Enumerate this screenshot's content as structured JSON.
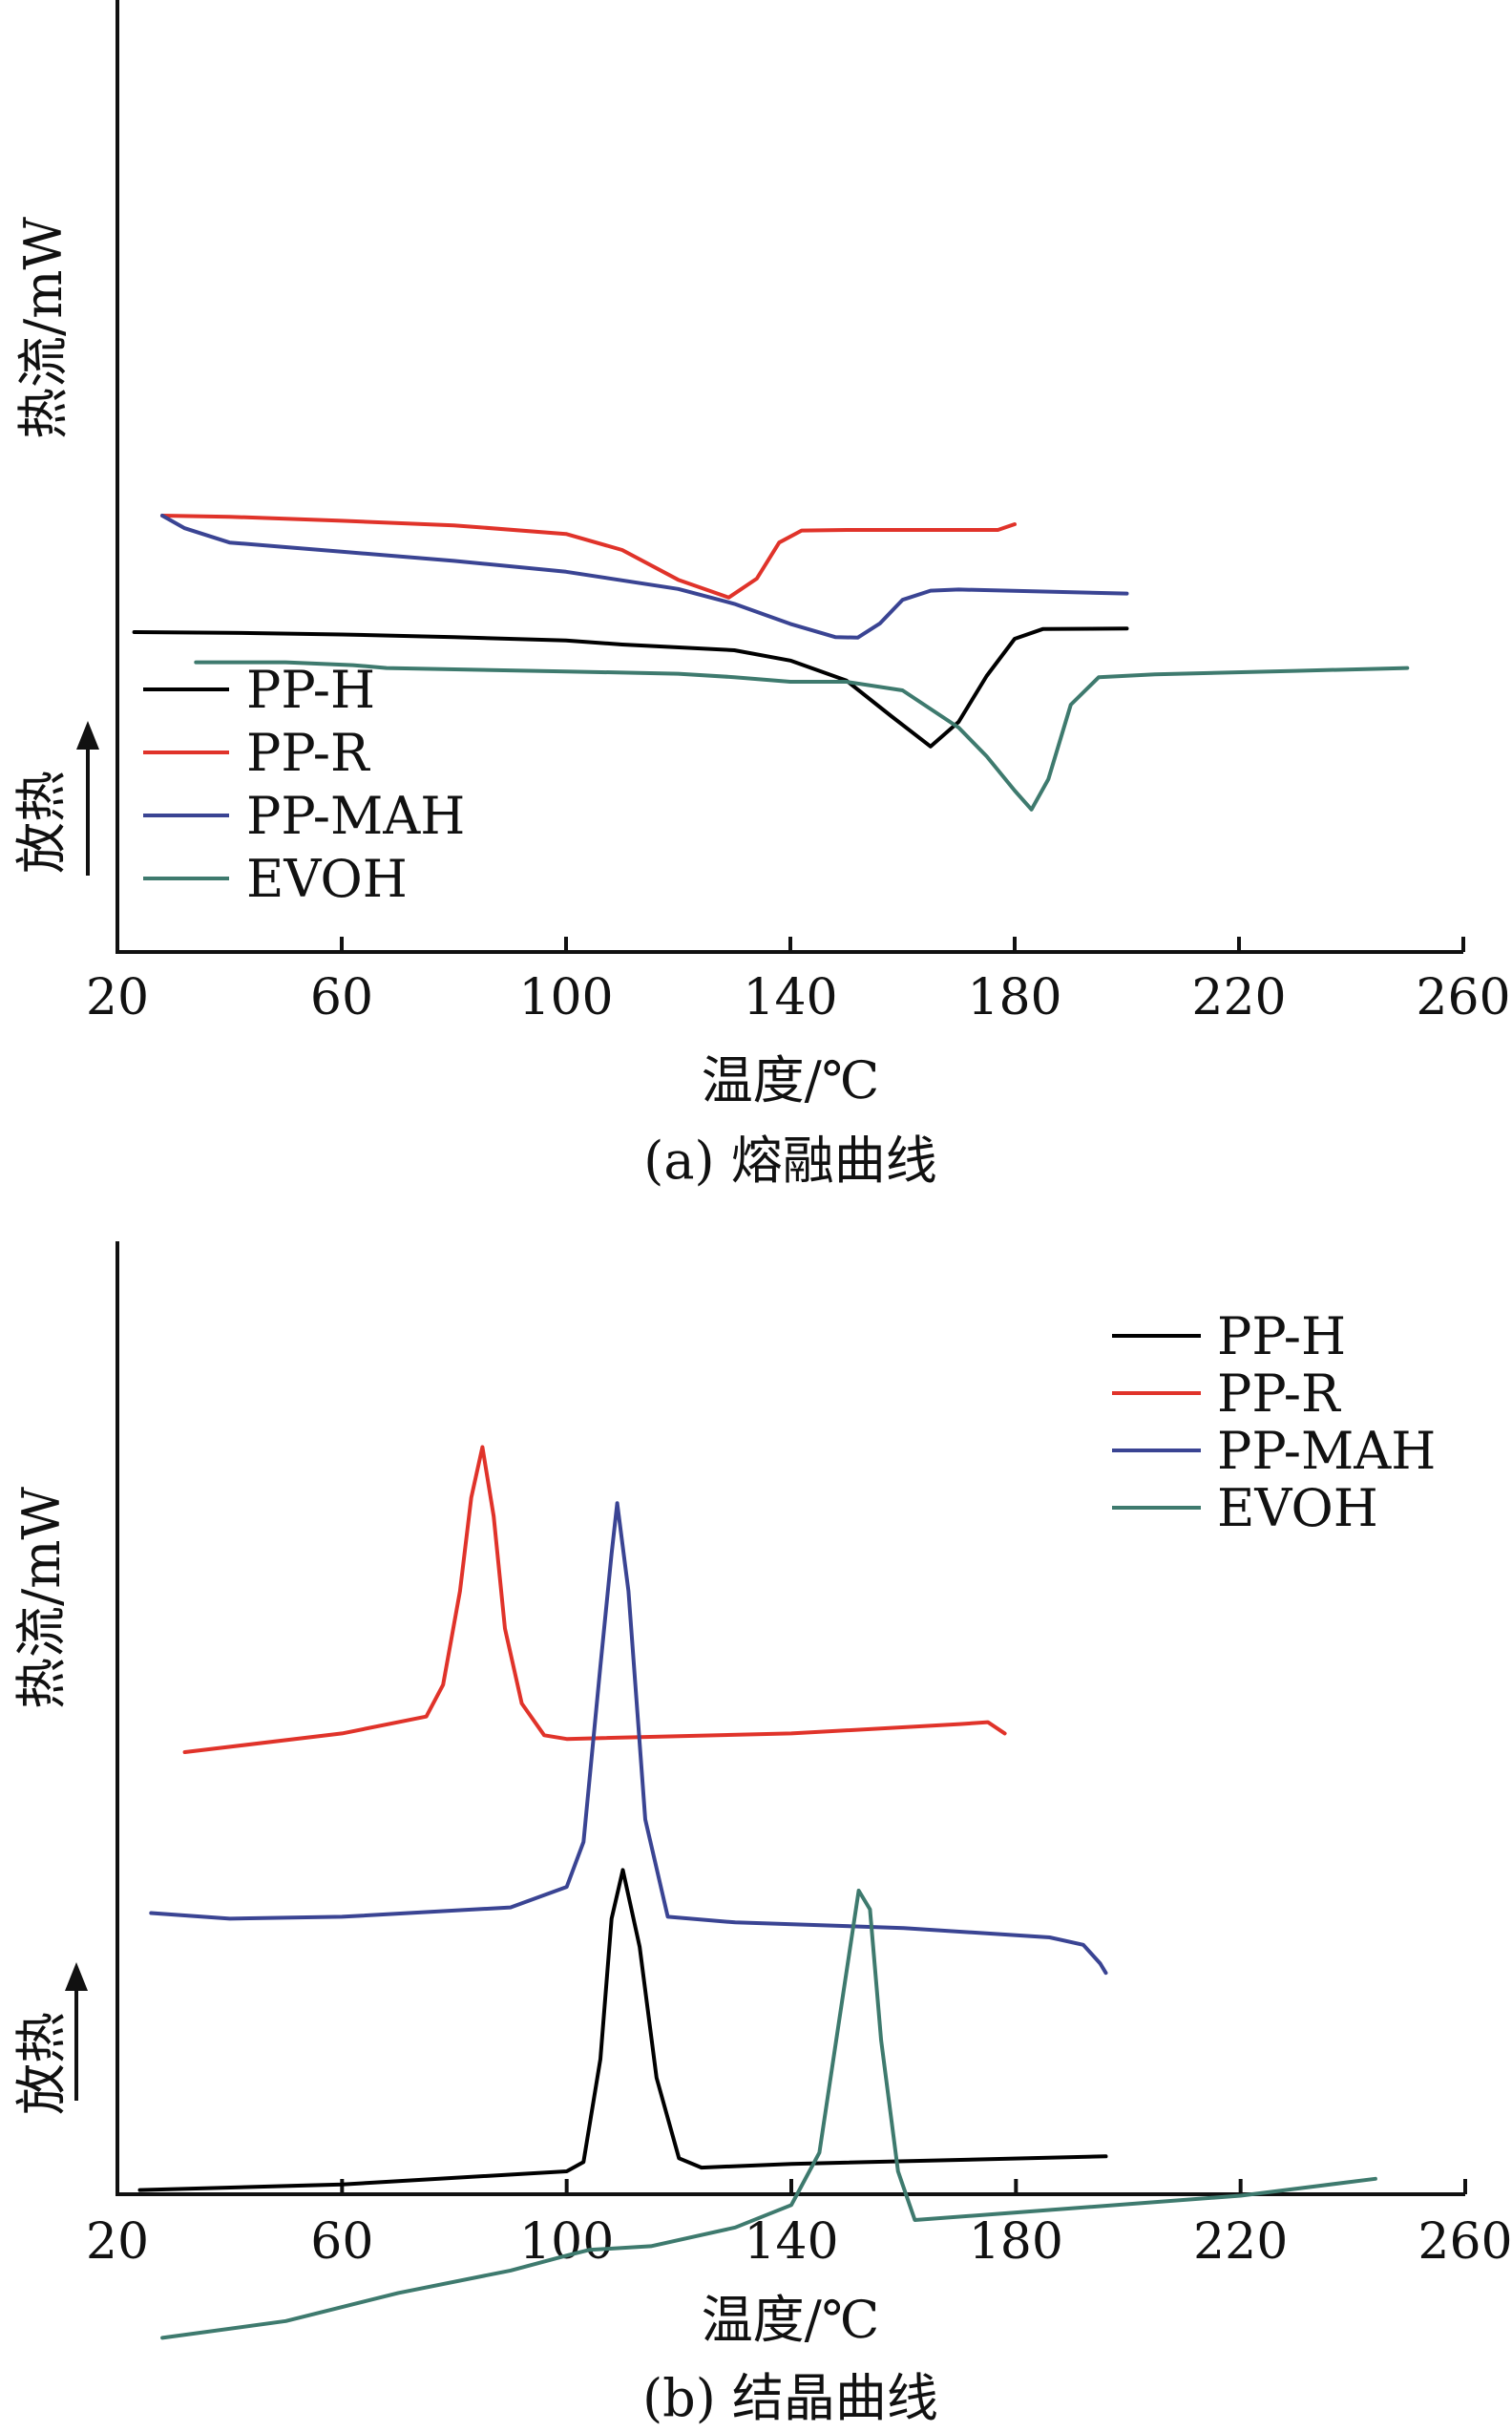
{
  "chart_data": [
    {
      "type": "line",
      "caption": "(a) 熔融曲线",
      "xlabel": "温度/℃",
      "ylabel": "热流/mW",
      "direction_label": "放热",
      "xlim": [
        20,
        260
      ],
      "xticks": [
        20,
        60,
        100,
        140,
        180,
        220,
        260
      ],
      "y_ticks_shown": false,
      "legend_position": "bottom-left",
      "series": [
        {
          "name": "PP-H",
          "color": "#000000",
          "points": [
            [
              23,
              -0.33
            ],
            [
              40,
              -0.45
            ],
            [
              60,
              -0.75
            ],
            [
              80,
              -1.2
            ],
            [
              100,
              -1.8
            ],
            [
              110,
              -2.5
            ],
            [
              130,
              -3.5
            ],
            [
              140,
              -5.3
            ],
            [
              150,
              -8.8
            ],
            [
              158,
              -15
            ],
            [
              165,
              -20.3
            ],
            [
              170,
              -16
            ],
            [
              175,
              -8
            ],
            [
              180,
              -1.5
            ],
            [
              185,
              0.2
            ],
            [
              200,
              0.3
            ]
          ]
        },
        {
          "name": "PP-R",
          "color": "#e0332a",
          "points": [
            [
              28,
              20
            ],
            [
              40,
              19.8
            ],
            [
              60,
              19.1
            ],
            [
              80,
              18.3
            ],
            [
              100,
              16.8
            ],
            [
              110,
              14
            ],
            [
              120,
              8.8
            ],
            [
              129,
              5.7
            ],
            [
              134,
              9
            ],
            [
              138,
              15.3
            ],
            [
              142,
              17.4
            ],
            [
              150,
              17.5
            ],
            [
              177,
              17.5
            ],
            [
              180,
              18.5
            ]
          ]
        },
        {
          "name": "PP-MAH",
          "color": "#3a4493",
          "points": [
            [
              28,
              20
            ],
            [
              32,
              17.8
            ],
            [
              40,
              15.3
            ],
            [
              50,
              14.5
            ],
            [
              60,
              13.7
            ],
            [
              80,
              12.1
            ],
            [
              100,
              10.2
            ],
            [
              120,
              7.2
            ],
            [
              130,
              4.6
            ],
            [
              140,
              1.1
            ],
            [
              148,
              -1.2
            ],
            [
              152,
              -1.3
            ],
            [
              156,
              1.2
            ],
            [
              160,
              5.3
            ],
            [
              165,
              6.9
            ],
            [
              170,
              7.1
            ],
            [
              200,
              6.4
            ]
          ]
        },
        {
          "name": "EVOH",
          "color": "#3e7a6e",
          "points": [
            [
              34,
              -5.6
            ],
            [
              50,
              -5.6
            ],
            [
              62,
              -6.1
            ],
            [
              68,
              -6.6
            ],
            [
              100,
              -7.2
            ],
            [
              120,
              -7.6
            ],
            [
              130,
              -8.2
            ],
            [
              140,
              -9
            ],
            [
              150,
              -9
            ],
            [
              160,
              -10.5
            ],
            [
              170,
              -17
            ],
            [
              175,
              -22
            ],
            [
              180,
              -28
            ],
            [
              183,
              -31.3
            ],
            [
              186,
              -26
            ],
            [
              190,
              -13
            ],
            [
              195,
              -8.2
            ],
            [
              205,
              -7.7
            ],
            [
              230,
              -7.1
            ],
            [
              250,
              -6.6
            ]
          ]
        }
      ]
    },
    {
      "type": "line",
      "caption": "(b) 结晶曲线",
      "xlabel": "温度/℃",
      "ylabel": "热流/mW",
      "direction_label": "放热",
      "xlim": [
        20,
        260
      ],
      "xticks": [
        20,
        60,
        100,
        140,
        180,
        220,
        260
      ],
      "y_ticks_shown": false,
      "legend_position": "top-right",
      "series": [
        {
          "name": "PP-H",
          "color": "#000000",
          "points": [
            [
              24,
              -16
            ],
            [
              60,
              -15.7
            ],
            [
              100,
              -15
            ],
            [
              103,
              -14.5
            ],
            [
              106,
              -9
            ],
            [
              108,
              -1.5
            ],
            [
              110,
              1.1
            ],
            [
              113,
              -3
            ],
            [
              116,
              -10
            ],
            [
              120,
              -14.3
            ],
            [
              124,
              -14.8
            ],
            [
              140,
              -14.6
            ],
            [
              196,
              -14.2
            ]
          ]
        },
        {
          "name": "PP-R",
          "color": "#e0332a",
          "points": [
            [
              32,
              7.4
            ],
            [
              60,
              8.4
            ],
            [
              75,
              9.3
            ],
            [
              78,
              11
            ],
            [
              81,
              16
            ],
            [
              83,
              21
            ],
            [
              85,
              23.7
            ],
            [
              87,
              20
            ],
            [
              89,
              14
            ],
            [
              92,
              10
            ],
            [
              96,
              8.3
            ],
            [
              100,
              8.1
            ],
            [
              140,
              8.4
            ],
            [
              170,
              8.9
            ],
            [
              175,
              9
            ],
            [
              178,
              8.4
            ]
          ]
        },
        {
          "name": "PP-MAH",
          "color": "#3a4493",
          "points": [
            [
              26,
              -1.2
            ],
            [
              40,
              -1.5
            ],
            [
              60,
              -1.4
            ],
            [
              90,
              -0.9
            ],
            [
              100,
              0.2
            ],
            [
              103,
              2.6
            ],
            [
              106,
              12
            ],
            [
              108,
              18
            ],
            [
              109,
              20.7
            ],
            [
              111,
              16
            ],
            [
              114,
              3.8
            ],
            [
              118,
              -1.4
            ],
            [
              130,
              -1.7
            ],
            [
              160,
              -2
            ],
            [
              186,
              -2.5
            ],
            [
              192,
              -2.9
            ],
            [
              195,
              -3.9
            ],
            [
              196,
              -4.4
            ]
          ]
        },
        {
          "name": "EVOH",
          "color": "#3e7a6e",
          "points": [
            [
              28,
              -23.9
            ],
            [
              50,
              -23
            ],
            [
              70,
              -21.5
            ],
            [
              90,
              -20.3
            ],
            [
              100,
              -19.5
            ],
            [
              104,
              -19.2
            ],
            [
              115,
              -19
            ],
            [
              130,
              -18
            ],
            [
              140,
              -16.8
            ],
            [
              145,
              -14
            ],
            [
              149,
              -6
            ],
            [
              152,
              0
            ],
            [
              154,
              -1
            ],
            [
              156,
              -8
            ],
            [
              159,
              -15
            ],
            [
              162,
              -17.6
            ],
            [
              180,
              -17.2
            ],
            [
              220,
              -16.3
            ],
            [
              244,
              -15.4
            ]
          ]
        }
      ]
    }
  ]
}
